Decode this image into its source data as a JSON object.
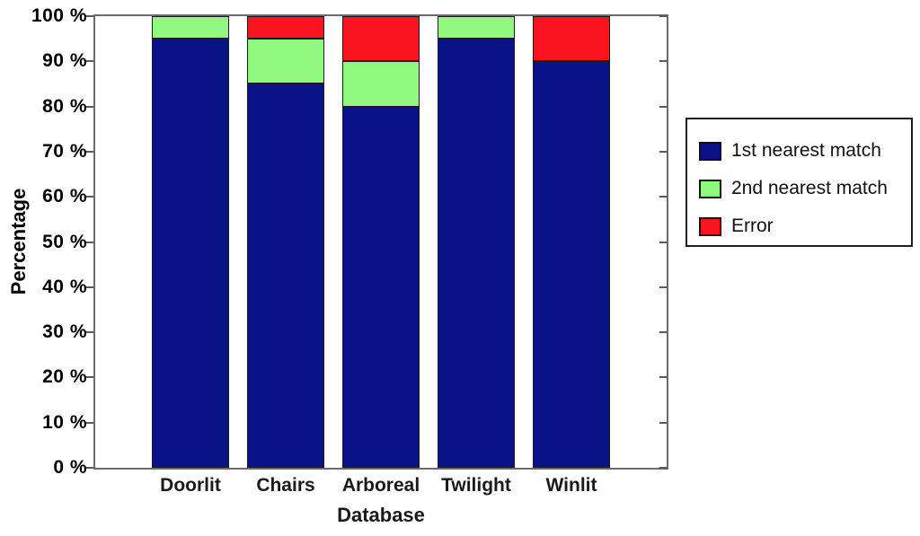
{
  "chart_data": {
    "type": "bar",
    "stacked": true,
    "title": "",
    "xlabel": "Database",
    "ylabel": "Percentage",
    "categories": [
      "Doorlit",
      "Chairs",
      "Arboreal",
      "Twilight",
      "Winlit"
    ],
    "series": [
      {
        "name": "1st nearest match",
        "color": "#0a1288",
        "values": [
          95,
          85,
          80,
          95,
          90
        ]
      },
      {
        "name": "2nd nearest match",
        "color": "#90f87e",
        "values": [
          5,
          10,
          10,
          5,
          0
        ]
      },
      {
        "name": "Error",
        "color": "#fa1420",
        "values": [
          0,
          5,
          10,
          0,
          10
        ]
      }
    ],
    "ylim": [
      0,
      100
    ],
    "yticks": [
      0,
      10,
      20,
      30,
      40,
      50,
      60,
      70,
      80,
      90,
      100
    ],
    "ytick_labels": [
      "0 %",
      "10 %",
      "20 %",
      "30 %",
      "40 %",
      "50 %",
      "60 %",
      "70 %",
      "80 %",
      "90 %",
      "100 %"
    ],
    "grid": false,
    "legend_position": "right-outside",
    "legend_entries": [
      "1st nearest match",
      "2nd nearest match",
      "Error"
    ]
  },
  "layout_colors": {
    "axis_line": "#6b6b6b",
    "tick": "#5a5a5a",
    "bar_outline": "#1a1a1a",
    "background": "#ffffff"
  }
}
